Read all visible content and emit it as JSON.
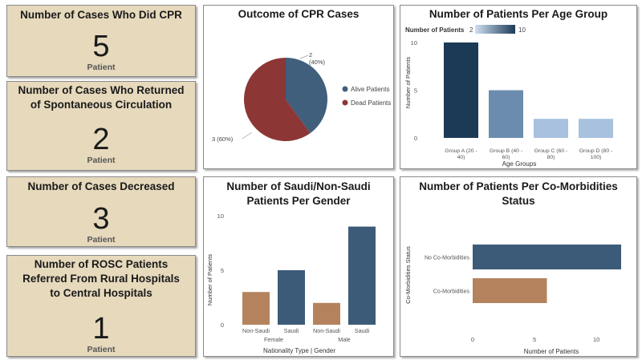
{
  "kpis": [
    {
      "title": "Number of Cases Who Did CPR",
      "value": "5",
      "unit": "Patient"
    },
    {
      "title": "Number of Cases Who Returned of Spontaneous Circulation",
      "value": "2",
      "unit": "Patient"
    },
    {
      "title": "Number of Cases Decreased",
      "value": "3",
      "unit": "Patient"
    },
    {
      "title": "Number of ROSC Patients Referred From Rural Hospitals to Central Hospitals",
      "value": "1",
      "unit": "Patient"
    }
  ],
  "colors": {
    "kpi_bg": "#e6d9bc",
    "alive": "#3f5f7c",
    "dead": "#8c3636",
    "dark_blue": "#1c3a56",
    "mid_blue": "#6b8caf",
    "light_blue": "#a7c1de",
    "tan": "#b4835e",
    "slate": "#3c5b78"
  },
  "chart_data": [
    {
      "type": "pie",
      "title": "Outcome of CPR Cases",
      "labels": [
        "Alive Patients",
        "Dead Patients"
      ],
      "values": [
        2,
        3
      ],
      "data_labels": [
        "2\n(40%)",
        "3 (60%)"
      ],
      "legend": "right"
    },
    {
      "type": "bar",
      "title": "Number of Patients Per Age Group",
      "legend_title": "Number of Patients",
      "legend_min": "2",
      "legend_max": "10",
      "categories": [
        "Group A (20 - 40)",
        "Group B (40 - 60)",
        "Group C (60 - 80)",
        "Group D (80 - 100)"
      ],
      "values": [
        10,
        5,
        2,
        2
      ],
      "xlabel": "Age Groups",
      "ylabel": "Number of Patients",
      "ylim": [
        0,
        10
      ],
      "yticks": [
        "0",
        "5",
        "10"
      ]
    },
    {
      "type": "bar",
      "title": "Number of Saudi/Non-Saudi Patients Per Gender",
      "categories": [
        "Non-Saudi",
        "Saudi",
        "Non-Saudi",
        "Saudi"
      ],
      "groups": [
        "Female",
        "Male"
      ],
      "values": [
        3,
        5,
        2,
        9
      ],
      "xlabel": "Nationality Type | Gender",
      "ylabel": "Number of Patients",
      "ylim": [
        0,
        10
      ],
      "yticks": [
        "0",
        "5",
        "10"
      ]
    },
    {
      "type": "bar",
      "orientation": "horizontal",
      "title": "Number of Patients Per Co-Morbidities Status",
      "categories": [
        "No Co-Morbidities",
        "Co-Morbidities"
      ],
      "values": [
        12,
        6
      ],
      "xlabel": "Number of Patients",
      "ylabel": "Co-Morbidities Status",
      "xlim": [
        0,
        12
      ],
      "xticks": [
        "0",
        "5",
        "10"
      ]
    }
  ]
}
